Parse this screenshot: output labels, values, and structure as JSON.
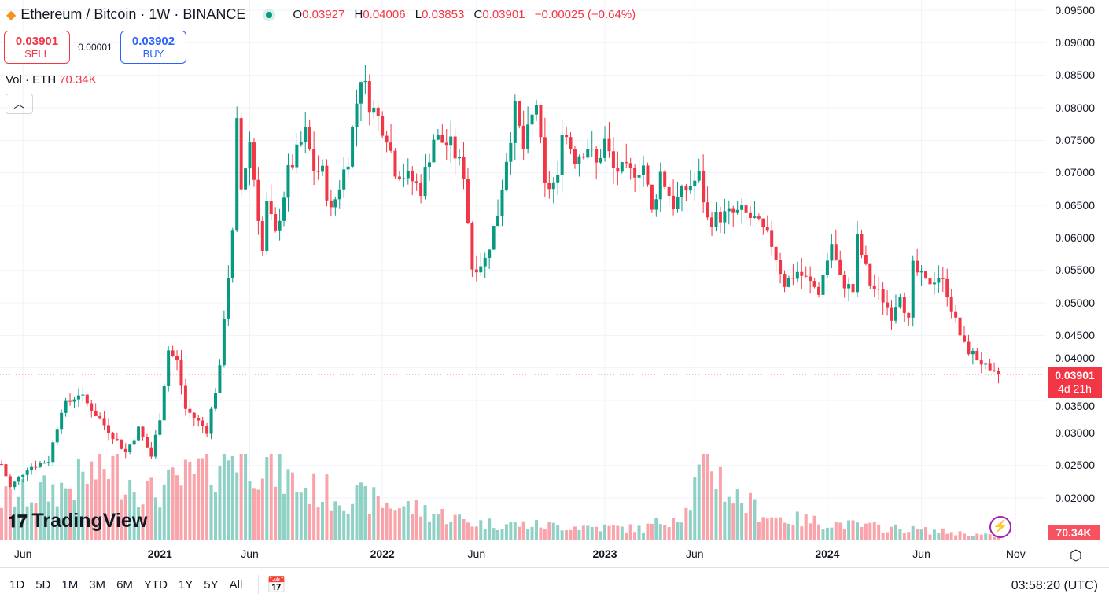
{
  "header": {
    "symbol": "Ethereum / Bitcoin · 1W · BINANCE",
    "ohlc": [
      {
        "k": "O",
        "v": "0.03927"
      },
      {
        "k": "H",
        "v": "0.04006"
      },
      {
        "k": "L",
        "v": "0.03853"
      },
      {
        "k": "C",
        "v": "0.03901"
      }
    ],
    "change": "−0.00025 (−0.64%)"
  },
  "trade": {
    "sell_price": "0.03901",
    "sell_label": "SELL",
    "spread": "0.00001",
    "buy_price": "0.03902",
    "buy_label": "BUY"
  },
  "volume": {
    "label": "Vol · ETH",
    "value": "70.34K"
  },
  "price_tag": {
    "price": "0.03901",
    "countdown": "4d 21h"
  },
  "volume_tag": "70.34K",
  "branding": "TradingView",
  "toolbar": {
    "ranges": [
      "1D",
      "5D",
      "1M",
      "3M",
      "6M",
      "YTD",
      "1Y",
      "5Y",
      "All"
    ],
    "clock": "03:58:20 (UTC)"
  },
  "colors": {
    "up": "#089981",
    "down": "#f23645"
  },
  "chart_data": {
    "type": "candlestick",
    "title": "Ethereum / Bitcoin · 1W · BINANCE",
    "ylim": [
      0.0165,
      0.0965
    ],
    "yticks": [
      "0.09500",
      "0.09000",
      "0.08500",
      "0.08000",
      "0.07500",
      "0.07000",
      "0.06500",
      "0.06000",
      "0.05500",
      "0.05000",
      "0.04500",
      "0.04000",
      "0.03500",
      "0.03000",
      "0.02500",
      "0.02000"
    ],
    "xticks": [
      {
        "label": "Jun",
        "week": 5
      },
      {
        "label": "2021",
        "week": 37,
        "bold": true
      },
      {
        "label": "Jun",
        "week": 58
      },
      {
        "label": "2022",
        "week": 89,
        "bold": true
      },
      {
        "label": "Jun",
        "week": 111
      },
      {
        "label": "2023",
        "week": 141,
        "bold": true
      },
      {
        "label": "Jun",
        "week": 162
      },
      {
        "label": "2024",
        "week": 193,
        "bold": true
      },
      {
        "label": "Jun",
        "week": 215
      },
      {
        "label": "Nov",
        "week": 237
      }
    ],
    "weeks": 234,
    "close_keypoints": [
      [
        0,
        0.0252
      ],
      [
        2,
        0.0216
      ],
      [
        6,
        0.0246
      ],
      [
        11,
        0.0258
      ],
      [
        14,
        0.0337
      ],
      [
        18,
        0.0361
      ],
      [
        21,
        0.0337
      ],
      [
        27,
        0.0288
      ],
      [
        29,
        0.027
      ],
      [
        32,
        0.0306
      ],
      [
        35,
        0.0264
      ],
      [
        37,
        0.0325
      ],
      [
        39,
        0.0428
      ],
      [
        41,
        0.0409
      ],
      [
        43,
        0.0337
      ],
      [
        48,
        0.0304
      ],
      [
        51,
        0.0397
      ],
      [
        52,
        0.0482
      ],
      [
        54,
        0.0603
      ],
      [
        55,
        0.0772
      ],
      [
        56,
        0.0675
      ],
      [
        58,
        0.0748
      ],
      [
        61,
        0.0579
      ],
      [
        62,
        0.0651
      ],
      [
        64,
        0.0603
      ],
      [
        67,
        0.07
      ],
      [
        71,
        0.076
      ],
      [
        73,
        0.0706
      ],
      [
        75,
        0.07
      ],
      [
        77,
        0.0639
      ],
      [
        81,
        0.0724
      ],
      [
        84,
        0.0851
      ],
      [
        86,
        0.0808
      ],
      [
        90,
        0.076
      ],
      [
        92,
        0.0706
      ],
      [
        96,
        0.0688
      ],
      [
        98,
        0.0675
      ],
      [
        101,
        0.0754
      ],
      [
        105,
        0.0742
      ],
      [
        108,
        0.07
      ],
      [
        110,
        0.0554
      ],
      [
        113,
        0.0566
      ],
      [
        116,
        0.0639
      ],
      [
        118,
        0.0724
      ],
      [
        120,
        0.0796
      ],
      [
        122,
        0.0736
      ],
      [
        125,
        0.0808
      ],
      [
        127,
        0.0675
      ],
      [
        130,
        0.0688
      ],
      [
        131,
        0.0772
      ],
      [
        134,
        0.0724
      ],
      [
        137,
        0.0742
      ],
      [
        139,
        0.0712
      ],
      [
        141,
        0.0748
      ],
      [
        143,
        0.0706
      ],
      [
        147,
        0.07
      ],
      [
        150,
        0.0712
      ],
      [
        152,
        0.0639
      ],
      [
        154,
        0.07
      ],
      [
        157,
        0.0651
      ],
      [
        160,
        0.0675
      ],
      [
        163,
        0.0694
      ],
      [
        165,
        0.0627
      ],
      [
        168,
        0.0633
      ],
      [
        173,
        0.0639
      ],
      [
        176,
        0.0627
      ],
      [
        180,
        0.0591
      ],
      [
        183,
        0.053
      ],
      [
        186,
        0.0548
      ],
      [
        191,
        0.0518
      ],
      [
        194,
        0.0591
      ],
      [
        196,
        0.0536
      ],
      [
        199,
        0.0518
      ],
      [
        200,
        0.0597
      ],
      [
        203,
        0.053
      ],
      [
        206,
        0.0506
      ],
      [
        208,
        0.0482
      ],
      [
        210,
        0.0518
      ],
      [
        212,
        0.047
      ],
      [
        213,
        0.0554
      ],
      [
        216,
        0.053
      ],
      [
        219,
        0.0542
      ],
      [
        221,
        0.0518
      ],
      [
        223,
        0.047
      ],
      [
        225,
        0.0433
      ],
      [
        229,
        0.0409
      ],
      [
        231,
        0.0389
      ],
      [
        233,
        0.039
      ]
    ],
    "volume_keypoints_k": [
      [
        0,
        700
      ],
      [
        15,
        900
      ],
      [
        25,
        1300
      ],
      [
        35,
        800
      ],
      [
        45,
        1100
      ],
      [
        55,
        1600
      ],
      [
        60,
        1400
      ],
      [
        70,
        900
      ],
      [
        85,
        700
      ],
      [
        100,
        500
      ],
      [
        110,
        300
      ],
      [
        130,
        250
      ],
      [
        150,
        200
      ],
      [
        160,
        500
      ],
      [
        165,
        1500
      ],
      [
        170,
        800
      ],
      [
        180,
        400
      ],
      [
        200,
        250
      ],
      [
        220,
        150
      ],
      [
        233,
        70.34
      ]
    ],
    "last_close": 0.03901
  }
}
